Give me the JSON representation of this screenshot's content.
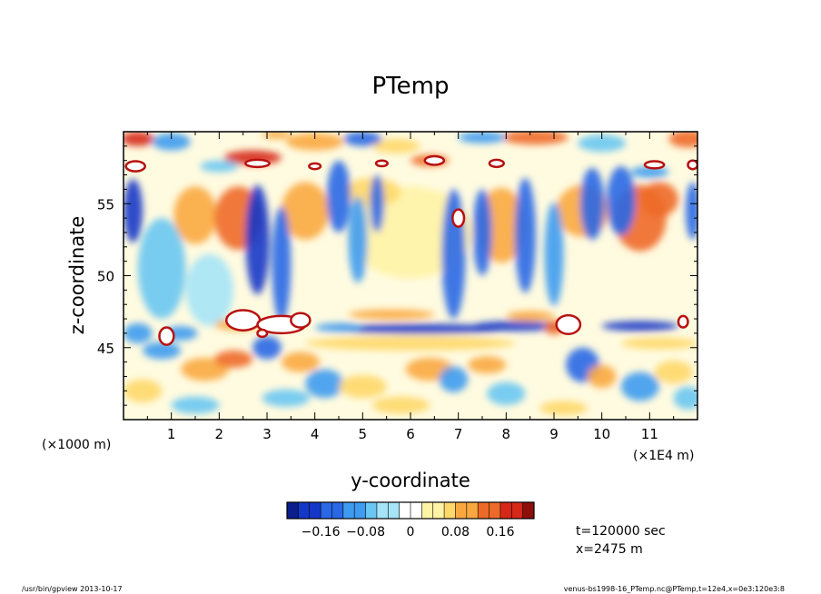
{
  "chart_data": {
    "type": "heatmap",
    "title": "PTemp",
    "xlabel": "y-coordinate",
    "ylabel": "z-coordinate",
    "x_unit_left": "(×1000 m)",
    "x_unit_right": "(×1E4 m)",
    "x_ticks": [
      "1",
      "2",
      "3",
      "4",
      "5",
      "6",
      "7",
      "8",
      "9",
      "10",
      "11"
    ],
    "x_tick_values": [
      1,
      2,
      3,
      4,
      5,
      6,
      7,
      8,
      9,
      10,
      11
    ],
    "xlim": [
      0,
      12
    ],
    "y_ticks": [
      "45",
      "50",
      "55"
    ],
    "y_tick_values": [
      45,
      50,
      55
    ],
    "ylim": [
      40,
      60
    ],
    "colorbar": {
      "tick_labels": [
        "−0.16",
        "−0.08",
        "0",
        "0.08",
        "0.16"
      ],
      "tick_values": [
        -0.16,
        -0.08,
        0,
        0.08,
        0.16
      ],
      "range": [
        -0.22,
        0.22
      ]
    },
    "annotations": [
      "t=120000 sec",
      "x=2475 m"
    ]
  },
  "colors": {
    "diverging_scale": [
      "#0a1e8c",
      "#1537c8",
      "#2a68e6",
      "#3e9bf0",
      "#6ac6f2",
      "#a6e4f7",
      "#ffffff",
      "#fff3a6",
      "#fed86a",
      "#f9a840",
      "#ee6a28",
      "#d62818",
      "#8c0f0a"
    ]
  },
  "footer": {
    "left": "/usr/bin/gpview  2013-10-17",
    "right": "venus-bs1998-16_PTemp.nc@PTemp,t=12e4,x=0e3:120e3:8"
  }
}
